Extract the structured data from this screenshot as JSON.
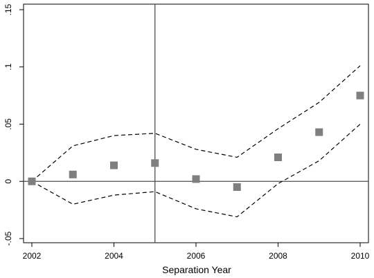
{
  "chart_data": {
    "type": "scatter",
    "title": "",
    "xlabel": "Separation Year",
    "ylabel": "",
    "xlim": [
      2002,
      2010
    ],
    "ylim": [
      -0.05,
      0.15
    ],
    "x_ticks": [
      2002,
      2004,
      2006,
      2008,
      2010
    ],
    "x_tick_labels": [
      "2002",
      "2004",
      "2006",
      "2008",
      "2010"
    ],
    "y_ticks": [
      -0.05,
      0,
      0.05,
      0.1,
      0.15
    ],
    "y_tick_labels": [
      "-.05",
      "0",
      ".05",
      ".1",
      ".15"
    ],
    "grid": false,
    "reference_lines": {
      "vertical_x": 2005,
      "horizontal_y": 0
    },
    "series": [
      {
        "kind": "points",
        "color": "#7f7f7f",
        "x": [
          2002,
          2003,
          2004,
          2005,
          2006,
          2007,
          2008,
          2009,
          2010
        ],
        "y": [
          0.0,
          0.006,
          0.014,
          0.016,
          0.002,
          -0.005,
          0.021,
          0.043,
          0.075
        ]
      },
      {
        "kind": "upper-bound",
        "style": "dashed",
        "color": "#000000",
        "x": [
          2002,
          2003,
          2004,
          2005,
          2006,
          2007,
          2008,
          2009,
          2010
        ],
        "y": [
          0.0,
          0.031,
          0.04,
          0.042,
          0.028,
          0.021,
          0.046,
          0.069,
          0.101
        ]
      },
      {
        "kind": "lower-bound",
        "style": "dashed",
        "color": "#000000",
        "x": [
          2002,
          2003,
          2004,
          2005,
          2006,
          2007,
          2008,
          2009,
          2010
        ],
        "y": [
          0.0,
          -0.02,
          -0.012,
          -0.009,
          -0.024,
          -0.031,
          -0.002,
          0.018,
          0.05
        ]
      }
    ]
  }
}
